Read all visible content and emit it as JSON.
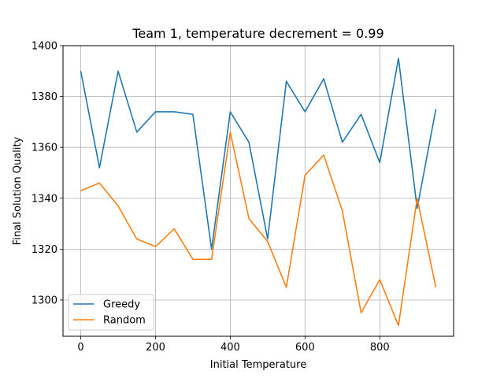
{
  "chart_data": {
    "type": "line",
    "title": "Team 1, temperature decrement = 0.99",
    "xlabel": "Initial Temperature",
    "ylabel": "Final Solution Quality",
    "x": [
      0,
      50,
      100,
      150,
      200,
      250,
      300,
      350,
      400,
      450,
      500,
      550,
      600,
      650,
      700,
      750,
      800,
      850,
      900,
      950
    ],
    "series": [
      {
        "name": "Greedy",
        "color": "#1f77b4",
        "values": [
          1390,
          1352,
          1390,
          1366,
          1374,
          1374,
          1373,
          1320,
          1374,
          1362,
          1324,
          1386,
          1374,
          1387,
          1362,
          1373,
          1354,
          1395,
          1336,
          1375
        ]
      },
      {
        "name": "Random",
        "color": "#ff7f0e",
        "values": [
          1343,
          1346,
          1337,
          1324,
          1321,
          1328,
          1316,
          1316,
          1366,
          1332,
          1323,
          1305,
          1349,
          1357,
          1335,
          1295,
          1308,
          1290,
          1340,
          1305
        ]
      }
    ],
    "xlim": [
      -47.5,
      997.5
    ],
    "ylim": [
      1285.75,
      1400
    ],
    "xticks": [
      0,
      200,
      400,
      600,
      800
    ],
    "yticks": [
      1300,
      1320,
      1340,
      1360,
      1380,
      1400
    ],
    "grid": true,
    "legend_position": "lower-left"
  }
}
